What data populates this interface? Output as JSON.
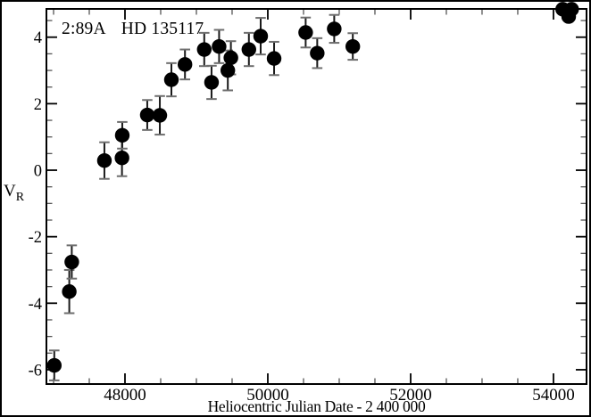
{
  "chart_data": {
    "type": "scatter",
    "title": "2:89A  HD 135117",
    "annotation_label": "2:89A",
    "star_name": "HD 135117",
    "xlabel": "Heliocentric Julian Date - 2 400 000",
    "ylabel": "V",
    "ylabel_subscript": "R",
    "grid": false,
    "legend": "none",
    "marker": {
      "shape": "filled-circle",
      "color": "#000000",
      "radius_px": 8.2
    },
    "error_bars": true,
    "xlim": [
      46900,
      54463
    ],
    "ylim": [
      -6.43,
      4.85
    ],
    "x_ticks": [
      48000,
      50000,
      52000,
      54000
    ],
    "x_minor_step": 500,
    "y_ticks": [
      4,
      2,
      0,
      -2,
      -4,
      -6
    ],
    "y_minor_step": 0.5,
    "points": [
      {
        "x": 47010,
        "v": -5.87,
        "e": 0.45
      },
      {
        "x": 47220,
        "v": -3.65,
        "e": 0.65
      },
      {
        "x": 47255,
        "v": -2.76,
        "e": 0.5
      },
      {
        "x": 47712,
        "v": 0.29,
        "e": 0.55
      },
      {
        "x": 47958,
        "v": 0.37,
        "e": 0.55
      },
      {
        "x": 47962,
        "v": 1.05,
        "e": 0.4
      },
      {
        "x": 48312,
        "v": 1.66,
        "e": 0.45
      },
      {
        "x": 48488,
        "v": 1.65,
        "e": 0.58
      },
      {
        "x": 48650,
        "v": 2.72,
        "e": 0.5
      },
      {
        "x": 48840,
        "v": 3.18,
        "e": 0.45
      },
      {
        "x": 49110,
        "v": 3.63,
        "e": 0.5
      },
      {
        "x": 49212,
        "v": 2.64,
        "e": 0.5
      },
      {
        "x": 49318,
        "v": 3.72,
        "e": 0.5
      },
      {
        "x": 49440,
        "v": 3.0,
        "e": 0.6
      },
      {
        "x": 49483,
        "v": 3.38,
        "e": 0.5
      },
      {
        "x": 49735,
        "v": 3.63,
        "e": 0.5
      },
      {
        "x": 49900,
        "v": 4.03,
        "e": 0.55
      },
      {
        "x": 50088,
        "v": 3.36,
        "e": 0.5
      },
      {
        "x": 50530,
        "v": 4.14,
        "e": 0.45
      },
      {
        "x": 50692,
        "v": 3.52,
        "e": 0.45
      },
      {
        "x": 50930,
        "v": 4.25,
        "e": 0.42
      },
      {
        "x": 51190,
        "v": 3.72,
        "e": 0.4
      },
      {
        "x": 54129,
        "v": 4.84,
        "e": 0.06
      },
      {
        "x": 54213,
        "v": 4.62,
        "e": 0.06
      },
      {
        "x": 54254,
        "v": 4.84,
        "e": 0.06
      }
    ]
  }
}
